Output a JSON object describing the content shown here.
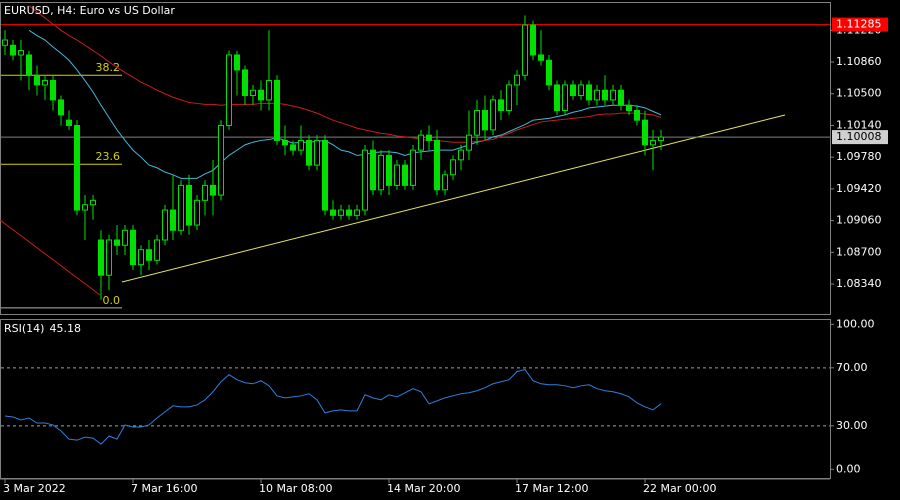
{
  "chart_data": {
    "type": "candlestick",
    "title": "EURUSD, H4:  Euro vs US Dollar",
    "categories": [
      "3 Mar 2022",
      null,
      null,
      null,
      null,
      null,
      null,
      null,
      null,
      null,
      null,
      null,
      null,
      null,
      null,
      null,
      "7 Mar 16:00",
      null,
      null,
      null,
      null,
      null,
      null,
      null,
      null,
      null,
      null,
      null,
      null,
      null,
      null,
      null,
      "10 Mar 08:00",
      null,
      null,
      null,
      null,
      null,
      null,
      null,
      null,
      null,
      null,
      null,
      null,
      null,
      null,
      null,
      "14 Mar 20:00",
      null,
      null,
      null,
      null,
      null,
      null,
      null,
      null,
      null,
      null,
      null,
      null,
      null,
      null,
      null,
      "17 Mar 12:00",
      null,
      null,
      null,
      null,
      null,
      null,
      null,
      null,
      null,
      null,
      null,
      null,
      null,
      null,
      null,
      "22 Mar 00:00",
      null,
      null
    ],
    "open": [
      1.1105,
      1.1105,
      1.1094,
      1.1094,
      1.1071,
      1.106,
      1.1065,
      1.1043,
      1.102,
      1.1014,
      1.0918,
      1.0924,
      1.0884,
      1.0844,
      1.0884,
      1.0878,
      1.0895,
      1.0856,
      1.0873,
      1.0861,
      1.0884,
      1.0918,
      1.0895,
      1.0946,
      1.0901,
      1.0929,
      1.0946,
      1.0935,
      1.1014,
      1.1094,
      1.1077,
      1.1048,
      1.1054,
      1.1043,
      1.1065,
      1.0997,
      1.0992,
      1.0986,
      1.0997,
      1.0969,
      1.0997,
      1.0918,
      1.0912,
      1.0918,
      1.0912,
      1.0918,
      1.0986,
      1.0941,
      1.098,
      1.0946,
      1.0969,
      1.0946,
      1.0986,
      1.1003,
      1.0997,
      1.0941,
      1.0958,
      1.0975,
      1.0986,
      1.1003,
      1.1031,
      1.1009,
      1.1043,
      1.1031,
      1.106,
      1.1071,
      1.1128,
      1.1094,
      1.1088,
      1.106,
      1.1031,
      1.106,
      1.1048,
      1.106,
      1.1043,
      1.1054,
      1.1043,
      1.1054,
      1.1037,
      1.1031,
      1.102,
      1.0992,
      1.0997
    ],
    "high": [
      1.1122,
      1.1111,
      1.1111,
      1.1099,
      1.1082,
      1.1071,
      1.1071,
      1.1048,
      1.1031,
      1.102,
      1.0935,
      1.0935,
      1.0895,
      1.089,
      1.0901,
      1.0901,
      1.0901,
      1.0878,
      1.0884,
      1.089,
      1.0924,
      1.0958,
      1.0952,
      1.0958,
      1.0935,
      1.0952,
      1.0975,
      1.102,
      1.1099,
      1.1099,
      1.1082,
      1.106,
      1.1065,
      1.1122,
      1.1071,
      1.1014,
      1.0997,
      1.1014,
      1.1003,
      1.1003,
      1.1003,
      1.0929,
      1.0924,
      1.0924,
      1.0924,
      1.0992,
      1.0997,
      1.0986,
      1.0986,
      1.0975,
      1.0975,
      1.0992,
      1.1009,
      1.1014,
      1.1009,
      1.0963,
      1.098,
      1.0992,
      1.1031,
      1.1043,
      1.1048,
      1.1048,
      1.1054,
      1.1065,
      1.1077,
      1.1139,
      1.1133,
      1.1122,
      1.1094,
      1.1065,
      1.1065,
      1.1065,
      1.1065,
      1.1065,
      1.106,
      1.1071,
      1.106,
      1.106,
      1.1043,
      1.1037,
      1.1031,
      1.1009,
      1.1009
    ],
    "low": [
      1.1094,
      1.1088,
      1.1065,
      1.1054,
      1.1048,
      1.1043,
      1.1031,
      1.1014,
      1.1009,
      1.0912,
      1.0884,
      1.0907,
      1.0816,
      1.0827,
      1.0867,
      1.0867,
      1.085,
      1.0844,
      1.085,
      1.0856,
      1.0878,
      1.0884,
      1.089,
      1.089,
      1.0895,
      1.0912,
      1.0912,
      1.0929,
      1.1009,
      1.1048,
      1.1037,
      1.1037,
      1.1031,
      1.1031,
      1.0992,
      1.098,
      1.098,
      1.098,
      1.0963,
      1.0963,
      1.0912,
      1.0907,
      1.0907,
      1.0907,
      1.0907,
      1.0912,
      1.0935,
      1.0935,
      1.0935,
      1.0941,
      1.0941,
      1.0941,
      1.0975,
      1.0986,
      1.0935,
      1.0935,
      1.0952,
      1.0963,
      1.0975,
      1.0992,
      1.0997,
      1.1003,
      1.102,
      1.1026,
      1.1037,
      1.1065,
      1.1088,
      1.1082,
      1.1054,
      1.1026,
      1.1026,
      1.1043,
      1.1043,
      1.1037,
      1.1037,
      1.1037,
      1.1037,
      1.1031,
      1.1026,
      1.1014,
      1.098,
      1.0963,
      1.0986
    ],
    "close": [
      1.1111,
      1.1094,
      1.1099,
      1.1071,
      1.106,
      1.1065,
      1.1043,
      1.1026,
      1.1014,
      1.0918,
      1.0924,
      1.0929,
      1.0844,
      1.0884,
      1.0878,
      1.0895,
      1.0856,
      1.0873,
      1.0861,
      1.0884,
      1.0918,
      1.0895,
      1.0946,
      1.0901,
      1.0929,
      1.0946,
      1.0935,
      1.1014,
      1.1094,
      1.1077,
      1.1048,
      1.1054,
      1.1043,
      1.1065,
      1.0997,
      1.0992,
      1.0986,
      1.0997,
      1.0969,
      1.0997,
      1.0918,
      1.0912,
      1.0918,
      1.0912,
      1.0918,
      1.0986,
      1.0941,
      1.098,
      1.0946,
      1.0969,
      1.0946,
      1.0986,
      1.1003,
      1.0997,
      1.0941,
      1.0958,
      1.0975,
      1.0986,
      1.1003,
      1.1031,
      1.1009,
      1.1043,
      1.1031,
      1.106,
      1.1071,
      1.1128,
      1.1094,
      1.1088,
      1.106,
      1.1031,
      1.106,
      1.1048,
      1.106,
      1.1043,
      1.1054,
      1.1043,
      1.1054,
      1.1037,
      1.1031,
      1.102,
      1.0992,
      1.0997,
      1.10008
    ],
    "color": "#00e000",
    "ma": [
      {
        "color": "#45b8d8",
        "values": [
          null,
          null,
          null,
          1.1122,
          1.1116,
          1.1111,
          1.1103,
          1.1096,
          1.1088,
          1.1077,
          1.1065,
          1.1052,
          1.1037,
          1.1023,
          1.1009,
          1.0997,
          1.0986,
          1.0978,
          1.0969,
          1.0966,
          1.0961,
          1.0958,
          1.0954,
          1.0954,
          1.0954,
          1.0959,
          1.0963,
          1.0972,
          1.098,
          1.0986,
          1.0992,
          1.0995,
          1.0997,
          1.0998,
          1.1,
          1.0997,
          1.0994,
          1.0995,
          1.0995,
          1.0996,
          1.0997,
          1.0992,
          1.0986,
          1.0984,
          1.098,
          1.0981,
          1.0983,
          1.0984,
          1.0984,
          1.0983,
          1.098,
          1.0983,
          1.0984,
          1.0985,
          1.0986,
          1.0986,
          1.0986,
          1.0989,
          1.0992,
          1.0995,
          1.0997,
          1.1001,
          1.1003,
          1.1007,
          1.1011,
          1.1015,
          1.102,
          1.1021,
          1.1022,
          1.1024,
          1.1026,
          1.1029,
          1.1031,
          1.1034,
          1.1035,
          1.1036,
          1.1037,
          1.1037,
          1.1037,
          1.1036,
          1.1034,
          1.103,
          1.1026
        ]
      },
      {
        "color": "#c81e1e",
        "values": [
          null,
          null,
          null,
          1.115,
          1.1143,
          1.1136,
          1.1129,
          1.1122,
          1.1116,
          1.1111,
          1.1105,
          1.1099,
          1.1093,
          1.1086,
          1.108,
          1.1074,
          1.1069,
          1.1063,
          1.1059,
          1.1054,
          1.105,
          1.1046,
          1.1043,
          1.104,
          1.1039,
          1.1038,
          1.1038,
          1.1037,
          1.1038,
          1.1038,
          1.1038,
          1.1038,
          1.1039,
          1.1039,
          1.1039,
          1.1038,
          1.1036,
          1.1034,
          1.1031,
          1.1028,
          1.1024,
          1.102,
          1.1017,
          1.1014,
          1.1011,
          1.1009,
          1.1007,
          1.1005,
          1.1004,
          1.1002,
          1.1001,
          1.1,
          1.0998,
          1.0997,
          1.0997,
          1.0996,
          1.0995,
          1.0995,
          1.0995,
          1.0996,
          1.0997,
          1.0998,
          1.1002,
          1.1005,
          1.1009,
          1.1012,
          1.1015,
          1.1018,
          1.1019,
          1.102,
          1.1021,
          1.1022,
          1.1023,
          1.1024,
          1.1026,
          1.1027,
          1.1027,
          1.1028,
          1.1028,
          1.1028,
          1.1027,
          1.1026,
          1.1023
        ]
      }
    ],
    "ylim": [
      1.08,
      1.1153
    ],
    "yticks": [
      {
        "value": 1.1122,
        "label": "1.11220"
      },
      {
        "value": 1.1086,
        "label": "1.10860"
      },
      {
        "value": 1.105,
        "label": "1.10500"
      },
      {
        "value": 1.1014,
        "label": "1.10140"
      },
      {
        "value": 1.0978,
        "label": "1.09780"
      },
      {
        "value": 1.0942,
        "label": "1.09420"
      },
      {
        "value": 1.0906,
        "label": "1.09060"
      },
      {
        "value": 1.087,
        "label": "1.08700"
      },
      {
        "value": 1.0834,
        "label": "1.08340"
      }
    ],
    "price_lines": [
      {
        "value": 1.11285,
        "color": "#ff0000"
      },
      {
        "value": 1.10008,
        "color": "#808080"
      }
    ],
    "fibo": {
      "levels": [
        "38.2",
        "23.6",
        "0.0"
      ],
      "prices": [
        1.1071,
        1.097,
        1.0807
      ],
      "color": "#d8d000"
    },
    "rsi": {
      "label": "RSI(14)",
      "color": "#2f7fe0",
      "values": [
        36.8,
        36.1,
        34.0,
        35.4,
        31.9,
        31.9,
        30.6,
        26.4,
        20.8,
        20.1,
        22.2,
        21.5,
        17.4,
        22.9,
        20.8,
        30.6,
        29.2,
        29.2,
        30.6,
        35.4,
        39.6,
        43.8,
        43.1,
        43.1,
        44.4,
        47.9,
        53.5,
        60.4,
        65.3,
        61.8,
        59.7,
        59.0,
        61.1,
        57.6,
        50.7,
        49.3,
        50.0,
        50.7,
        52.1,
        47.9,
        38.9,
        40.3,
        41.0,
        40.3,
        40.3,
        51.4,
        49.3,
        47.9,
        51.4,
        50.0,
        52.8,
        55.6,
        53.5,
        45.1,
        47.2,
        49.3,
        50.7,
        52.1,
        52.8,
        54.2,
        56.3,
        59.0,
        60.4,
        61.8,
        67.4,
        68.8,
        61.1,
        59.0,
        58.3,
        58.3,
        57.6,
        56.3,
        57.6,
        58.3,
        55.6,
        54.2,
        53.5,
        52.1,
        50.0,
        45.8,
        43.1,
        41.0,
        45.18
      ],
      "ylim": [
        -6,
        103
      ],
      "yticks": [
        {
          "value": 100,
          "label": "100.00"
        },
        {
          "value": 70,
          "label": "70.00"
        },
        {
          "value": 30,
          "label": "30.00"
        },
        {
          "value": 0,
          "label": "0.00"
        }
      ],
      "levels": [
        70,
        30
      ]
    }
  }
}
